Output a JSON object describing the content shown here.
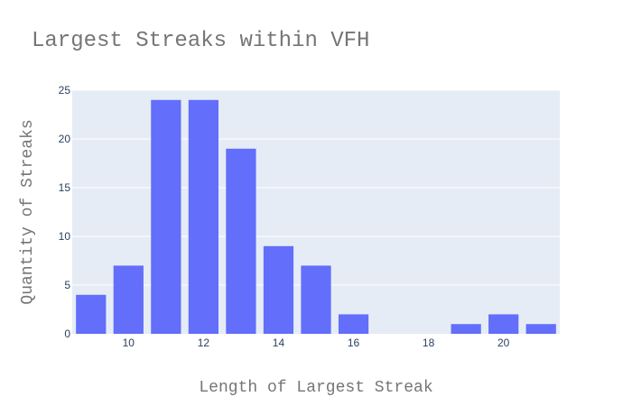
{
  "chart_data": {
    "type": "bar",
    "title": "Largest Streaks within VFH",
    "xlabel": "Length of Largest Streak",
    "ylabel": "Quantity of Streaks",
    "x": [
      9,
      10,
      11,
      12,
      13,
      14,
      15,
      16,
      17,
      18,
      19,
      20,
      21
    ],
    "values": [
      4,
      7,
      24,
      24,
      19,
      9,
      7,
      2,
      0,
      0,
      1,
      2,
      1
    ],
    "xlim": [
      8.5,
      21.5
    ],
    "ylim": [
      0,
      25
    ],
    "xticks": [
      10,
      12,
      14,
      16,
      18,
      20
    ],
    "yticks": [
      0,
      5,
      10,
      15,
      20,
      25
    ],
    "grid": true,
    "legend": "none",
    "colors": {
      "bar": "#636efa",
      "plot_background": "#e5ecf6",
      "gridline": "#ffffff",
      "title_text": "#757575",
      "tick_text": "#2a3f5f"
    }
  }
}
